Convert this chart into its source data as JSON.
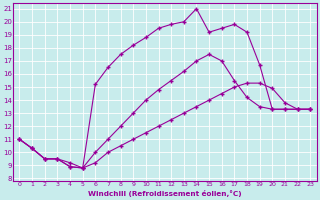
{
  "xlabel": "Windchill (Refroidissement éolien,°C)",
  "bg_color": "#c8ecec",
  "line_color": "#990099",
  "grid_color": "#ffffff",
  "xlim": [
    -0.5,
    23.5
  ],
  "ylim": [
    7.8,
    21.4
  ],
  "xticks": [
    0,
    1,
    2,
    3,
    4,
    5,
    6,
    7,
    8,
    9,
    10,
    11,
    12,
    13,
    14,
    15,
    16,
    17,
    18,
    19,
    20,
    21,
    22,
    23
  ],
  "yticks": [
    8,
    9,
    10,
    11,
    12,
    13,
    14,
    15,
    16,
    17,
    18,
    19,
    20,
    21
  ],
  "curve1_x": [
    0,
    1,
    2,
    3,
    4,
    5,
    6,
    7,
    8,
    9,
    10,
    11,
    12,
    13,
    14,
    15,
    16,
    17,
    18,
    19,
    20,
    21,
    22,
    23
  ],
  "curve1_y": [
    11,
    10.3,
    9.5,
    9.5,
    8.9,
    8.8,
    9.2,
    10.0,
    10.5,
    11.0,
    11.5,
    12.0,
    12.5,
    13.0,
    13.5,
    14.0,
    14.5,
    15.0,
    15.3,
    15.3,
    14.9,
    13.8,
    13.3,
    13.3
  ],
  "curve2_x": [
    0,
    1,
    2,
    3,
    4,
    5,
    6,
    7,
    8,
    9,
    10,
    11,
    12,
    13,
    14,
    15,
    16,
    17,
    18,
    19,
    20,
    21,
    22,
    23
  ],
  "curve2_y": [
    11,
    10.3,
    9.5,
    9.5,
    8.9,
    8.8,
    10.0,
    11.0,
    12.0,
    13.0,
    14.0,
    14.8,
    15.5,
    16.2,
    17.0,
    17.5,
    17.0,
    15.5,
    14.2,
    13.5,
    13.3,
    13.3,
    13.3,
    13.3
  ],
  "curve3_x": [
    0,
    1,
    2,
    3,
    4,
    5,
    6,
    7,
    8,
    9,
    10,
    11,
    12,
    13,
    14,
    15,
    16,
    17,
    18,
    19,
    20,
    21,
    22,
    23
  ],
  "curve3_y": [
    11,
    10.3,
    9.5,
    9.5,
    9.2,
    8.8,
    15.2,
    16.5,
    17.5,
    18.2,
    18.8,
    19.5,
    19.8,
    20.0,
    21.0,
    19.2,
    19.5,
    19.8,
    19.2,
    16.7,
    13.3,
    13.3,
    13.3,
    13.3
  ]
}
